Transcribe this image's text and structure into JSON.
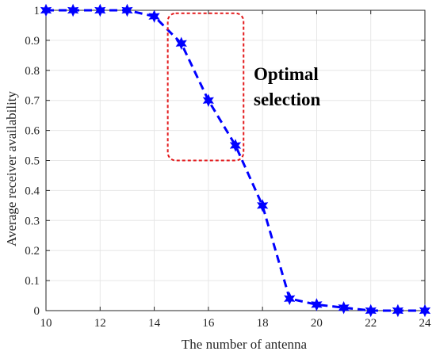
{
  "chart_data": {
    "type": "line",
    "title": "",
    "xlabel": "The number of antenna",
    "ylabel": "Average receiver availability",
    "xlim": [
      10,
      24
    ],
    "ylim": [
      0,
      1
    ],
    "grid": true,
    "xticks": [
      "10",
      "12",
      "14",
      "16",
      "18",
      "20",
      "22",
      "24"
    ],
    "yticks": [
      "0",
      "0.1",
      "0.2",
      "0.3",
      "0.4",
      "0.5",
      "0.6",
      "0.7",
      "0.8",
      "0.9",
      "1"
    ],
    "series": [
      {
        "marker": "hexagram",
        "line_style": "dashed",
        "color": "#0000ff",
        "x": [
          10,
          11,
          12,
          13,
          14,
          15,
          16,
          17,
          18,
          19,
          20,
          21,
          22,
          23,
          24
        ],
        "y": [
          1.0,
          1.0,
          1.0,
          1.0,
          0.98,
          0.89,
          0.7,
          0.55,
          0.35,
          0.04,
          0.02,
          0.01,
          0.0,
          0.0,
          0.0
        ]
      }
    ],
    "annotations": [
      {
        "text_lines": [
          "Optimal",
          "selection"
        ],
        "box": {
          "x_range": [
            14.5,
            17.3
          ],
          "y_range": [
            0.5,
            0.99
          ],
          "color": "#e31a1c",
          "style": "dashed"
        }
      }
    ]
  }
}
